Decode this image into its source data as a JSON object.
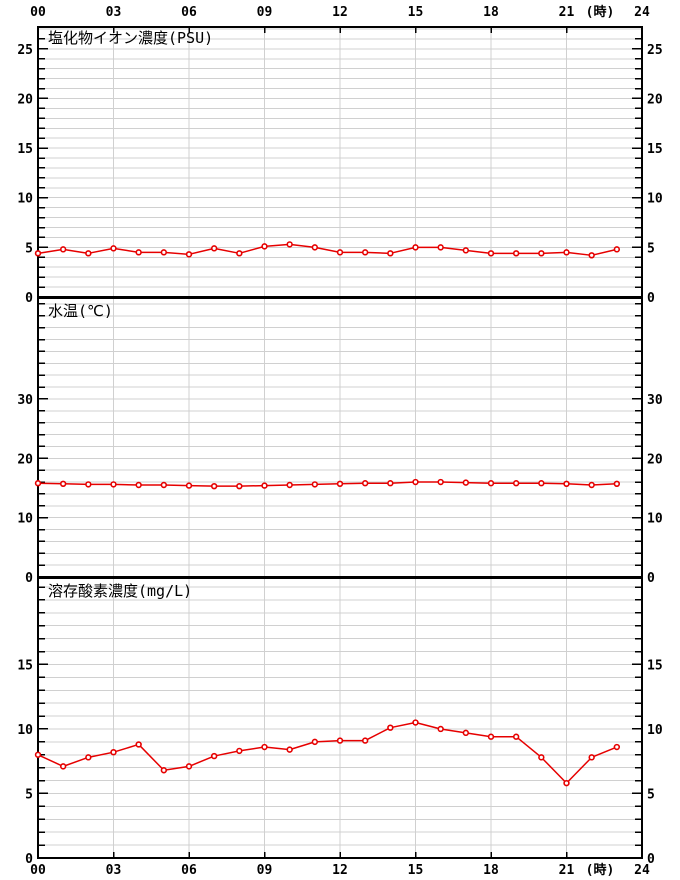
{
  "page": {
    "background": "#ffffff",
    "axis_color": "#000000",
    "grid_color": "#d0d0d0",
    "series_color": "#e60000",
    "marker_fill": "#ffffff"
  },
  "x_axis": {
    "unit_label": "(時)",
    "tick_hours": [
      0,
      3,
      6,
      9,
      12,
      15,
      18,
      21,
      24
    ],
    "tick_labels": [
      "00",
      "03",
      "06",
      "09",
      "12",
      "15",
      "18",
      "21",
      "24"
    ],
    "hours_max": 24,
    "labels_top": true,
    "labels_bottom": true
  },
  "chart_data": [
    {
      "type": "line",
      "title": "塩化物イオン濃度(PSU)",
      "ylabel": "PSU",
      "x": [
        0,
        1,
        2,
        3,
        4,
        5,
        6,
        7,
        8,
        9,
        10,
        11,
        12,
        13,
        14,
        15,
        16,
        17,
        18,
        19,
        20,
        21,
        22,
        23
      ],
      "values": [
        4.4,
        4.8,
        4.4,
        4.9,
        4.5,
        4.5,
        4.3,
        4.9,
        4.4,
        5.1,
        5.3,
        5.0,
        4.5,
        4.5,
        4.4,
        5.0,
        5.0,
        4.7,
        4.4,
        4.4,
        4.4,
        4.5,
        4.2,
        4.8
      ],
      "ylim": [
        0,
        27.2
      ],
      "y_tick_labels": [
        0,
        5,
        10,
        15,
        20,
        25
      ],
      "y_minor_step": 1,
      "grid": true,
      "legend": "none",
      "marker": "open-circle"
    },
    {
      "type": "line",
      "title": "水温(℃)",
      "ylabel": "℃",
      "x": [
        0,
        1,
        2,
        3,
        4,
        5,
        6,
        7,
        8,
        9,
        10,
        11,
        12,
        13,
        14,
        15,
        16,
        17,
        18,
        19,
        20,
        21,
        22,
        23
      ],
      "values": [
        15.8,
        15.7,
        15.6,
        15.6,
        15.5,
        15.5,
        15.4,
        15.3,
        15.3,
        15.4,
        15.5,
        15.6,
        15.7,
        15.8,
        15.8,
        16.0,
        16.0,
        15.9,
        15.8,
        15.8,
        15.8,
        15.7,
        15.5,
        15.7
      ],
      "ylim": [
        0,
        47
      ],
      "y_tick_labels": [
        0,
        10,
        20,
        30
      ],
      "y_minor_step": 2,
      "grid": true,
      "legend": "none",
      "marker": "open-circle"
    },
    {
      "type": "line",
      "title": "溶存酸素濃度(mg/L)",
      "ylabel": "mg/L",
      "x": [
        0,
        1,
        2,
        3,
        4,
        5,
        6,
        7,
        8,
        9,
        10,
        11,
        12,
        13,
        14,
        15,
        16,
        17,
        18,
        19,
        20,
        21,
        22,
        23
      ],
      "values": [
        8.0,
        7.1,
        7.8,
        8.2,
        8.8,
        6.8,
        7.1,
        7.9,
        8.3,
        8.6,
        8.4,
        9.0,
        9.1,
        9.1,
        10.1,
        10.5,
        10.0,
        9.7,
        9.4,
        9.4,
        7.8,
        5.8,
        7.8,
        8.6
      ],
      "ylim": [
        0,
        21.7
      ],
      "y_tick_labels": [
        0,
        5,
        10,
        15
      ],
      "y_minor_step": 1,
      "grid": true,
      "legend": "none",
      "marker": "open-circle"
    }
  ]
}
